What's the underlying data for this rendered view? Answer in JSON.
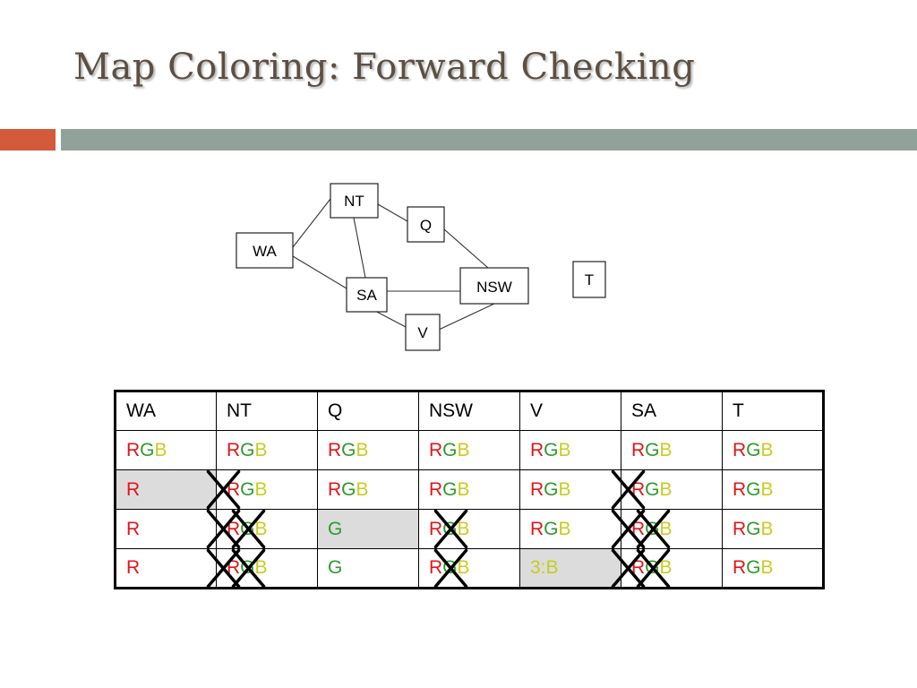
{
  "slide": {
    "title": "Map Coloring: Forward Checking",
    "colors": {
      "accent": "#d35a3b",
      "rule": "#91a29a",
      "title": "#5c4f43"
    }
  },
  "graph": {
    "nodes": [
      "NT",
      "Q",
      "WA",
      "NSW",
      "SA",
      "V",
      "T"
    ],
    "edges": [
      [
        "WA",
        "NT"
      ],
      [
        "WA",
        "SA"
      ],
      [
        "NT",
        "SA"
      ],
      [
        "NT",
        "Q"
      ],
      [
        "Q",
        "NSW"
      ],
      [
        "SA",
        "NSW"
      ],
      [
        "SA",
        "V"
      ],
      [
        "V",
        "NSW"
      ]
    ]
  },
  "table": {
    "colors": {
      "R": "#e3151a",
      "G": "#2d9a2d",
      "B": "#c8cc1e",
      "highlight": "#dcdcdc"
    },
    "headers": [
      "WA",
      "NT",
      "Q",
      "NSW",
      "V",
      "SA",
      "T"
    ],
    "rows": [
      [
        {
          "parts": [
            [
              "R",
              "R"
            ],
            [
              "G",
              "G"
            ],
            [
              "B",
              "B"
            ]
          ]
        },
        {
          "parts": [
            [
              "R",
              "R"
            ],
            [
              "G",
              "G"
            ],
            [
              "B",
              "B"
            ]
          ]
        },
        {
          "parts": [
            [
              "R",
              "R"
            ],
            [
              "G",
              "G"
            ],
            [
              "B",
              "B"
            ]
          ]
        },
        {
          "parts": [
            [
              "R",
              "R"
            ],
            [
              "G",
              "G"
            ],
            [
              "B",
              "B"
            ]
          ]
        },
        {
          "parts": [
            [
              "R",
              "R"
            ],
            [
              "G",
              "G"
            ],
            [
              "B",
              "B"
            ]
          ]
        },
        {
          "parts": [
            [
              "R",
              "R"
            ],
            [
              "G",
              "G"
            ],
            [
              "B",
              "B"
            ]
          ]
        },
        {
          "parts": [
            [
              "R",
              "R"
            ],
            [
              "G",
              "G"
            ],
            [
              "B",
              "B"
            ]
          ]
        }
      ],
      [
        {
          "parts": [
            [
              "R",
              "R"
            ]
          ],
          "highlight": true
        },
        {
          "parts": [
            [
              "R",
              "R"
            ],
            [
              "G",
              "G"
            ],
            [
              "B",
              "B"
            ]
          ],
          "crossed": [
            "R"
          ]
        },
        {
          "parts": [
            [
              "R",
              "R"
            ],
            [
              "G",
              "G"
            ],
            [
              "B",
              "B"
            ]
          ]
        },
        {
          "parts": [
            [
              "R",
              "R"
            ],
            [
              "G",
              "G"
            ],
            [
              "B",
              "B"
            ]
          ]
        },
        {
          "parts": [
            [
              "R",
              "R"
            ],
            [
              "G",
              "G"
            ],
            [
              "B",
              "B"
            ]
          ]
        },
        {
          "parts": [
            [
              "R",
              "R"
            ],
            [
              "G",
              "G"
            ],
            [
              "B",
              "B"
            ]
          ],
          "crossed": [
            "R"
          ]
        },
        {
          "parts": [
            [
              "R",
              "R"
            ],
            [
              "G",
              "G"
            ],
            [
              "B",
              "B"
            ]
          ]
        }
      ],
      [
        {
          "parts": [
            [
              "R",
              "R"
            ]
          ]
        },
        {
          "parts": [
            [
              "R",
              "R"
            ],
            [
              "G",
              "G"
            ],
            [
              "B",
              "B"
            ]
          ],
          "crossed": [
            "R",
            "G"
          ]
        },
        {
          "parts": [
            [
              "G",
              "G"
            ]
          ],
          "highlight": true
        },
        {
          "parts": [
            [
              "R",
              "R"
            ],
            [
              "G",
              "G"
            ],
            [
              "B",
              "B"
            ]
          ],
          "crossed": [
            "G"
          ]
        },
        {
          "parts": [
            [
              "R",
              "R"
            ],
            [
              "G",
              "G"
            ],
            [
              "B",
              "B"
            ]
          ]
        },
        {
          "parts": [
            [
              "R",
              "R"
            ],
            [
              "G",
              "G"
            ],
            [
              "B",
              "B"
            ]
          ],
          "crossed": [
            "R",
            "G"
          ]
        },
        {
          "parts": [
            [
              "R",
              "R"
            ],
            [
              "G",
              "G"
            ],
            [
              "B",
              "B"
            ]
          ]
        }
      ],
      [
        {
          "parts": [
            [
              "R",
              "R"
            ]
          ]
        },
        {
          "parts": [
            [
              "R",
              "R"
            ],
            [
              "G",
              "G"
            ],
            [
              "B",
              "B"
            ]
          ],
          "crossed": [
            "R",
            "G"
          ]
        },
        {
          "parts": [
            [
              "G",
              "G"
            ]
          ]
        },
        {
          "parts": [
            [
              "R",
              "R"
            ],
            [
              "G",
              "G"
            ],
            [
              "B",
              "B"
            ]
          ],
          "crossed": [
            "G"
          ]
        },
        {
          "parts": [
            [
              "3:B",
              "B"
            ]
          ],
          "highlight": true
        },
        {
          "parts": [
            [
              "R",
              "R"
            ],
            [
              "G",
              "G"
            ],
            [
              "B",
              "B"
            ]
          ],
          "crossed": [
            "R",
            "G"
          ]
        },
        {
          "parts": [
            [
              "R",
              "R"
            ],
            [
              "G",
              "G"
            ],
            [
              "B",
              "B"
            ]
          ]
        }
      ]
    ]
  }
}
